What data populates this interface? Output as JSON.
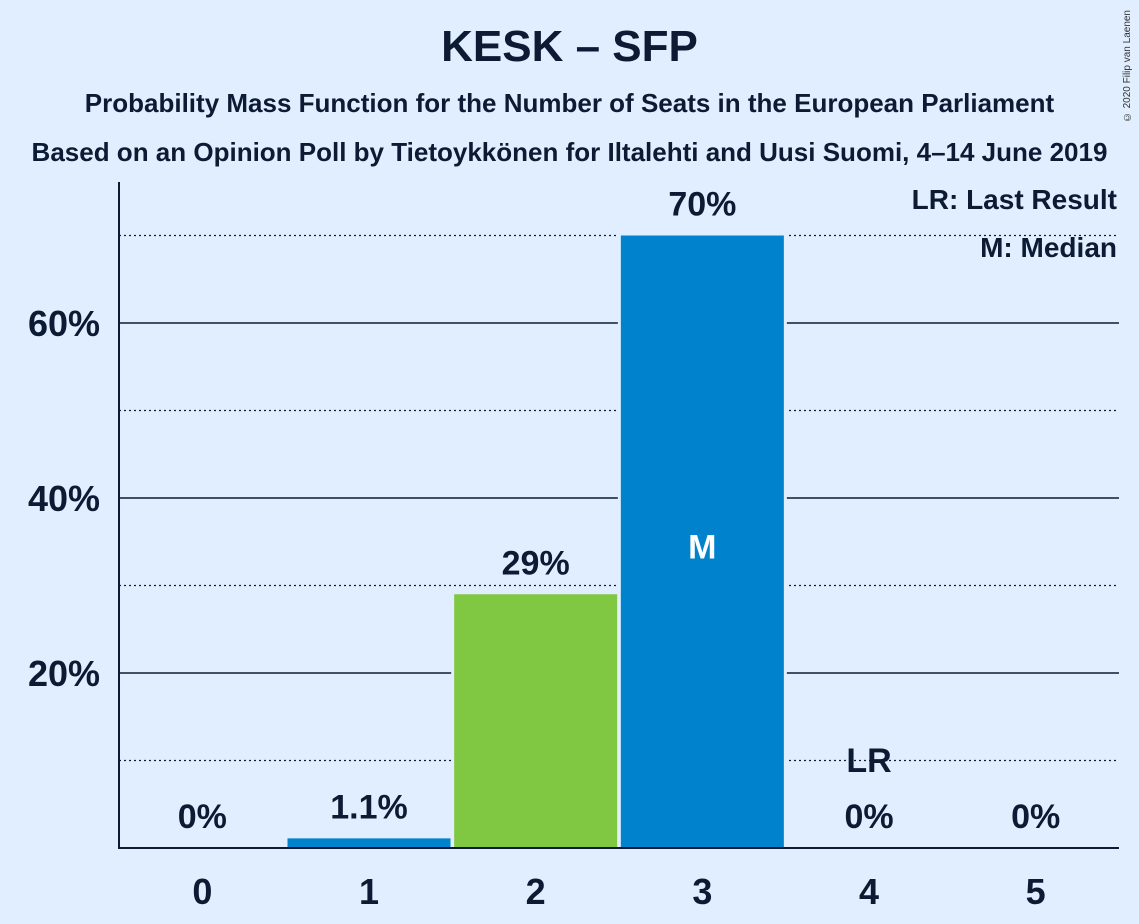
{
  "chart_data": {
    "type": "bar",
    "title": "KESK – SFP",
    "subtitle1": "Probability Mass Function for the Number of Seats in the European Parliament",
    "subtitle2": "Based on an Opinion Poll by Tietoykkönen for Iltalehti and Uusi Suomi, 4–14 June 2019",
    "categories": [
      "0",
      "1",
      "2",
      "3",
      "4",
      "5"
    ],
    "values": [
      0,
      1.1,
      29,
      70,
      0,
      0
    ],
    "value_labels": [
      "0%",
      "1.1%",
      "29%",
      "70%",
      "0%",
      "0%"
    ],
    "bar_colors": [
      "#0082CC",
      "#0082CC",
      "#80C841",
      "#0082CC",
      "#0082CC",
      "#0082CC"
    ],
    "median_index": 3,
    "median_marker": "M",
    "last_result_index": 4,
    "last_result_marker": "LR",
    "ylim": [
      0,
      75
    ],
    "yticks": [
      20,
      40,
      60
    ],
    "ytick_labels": [
      "20%",
      "40%",
      "60%"
    ],
    "minor_gridlines": [
      10,
      30,
      50,
      70
    ],
    "legend": [
      "LR: Last Result",
      "M: Median"
    ],
    "legend_position": "top-right",
    "copyright": "© 2020 Filip van Laenen"
  }
}
